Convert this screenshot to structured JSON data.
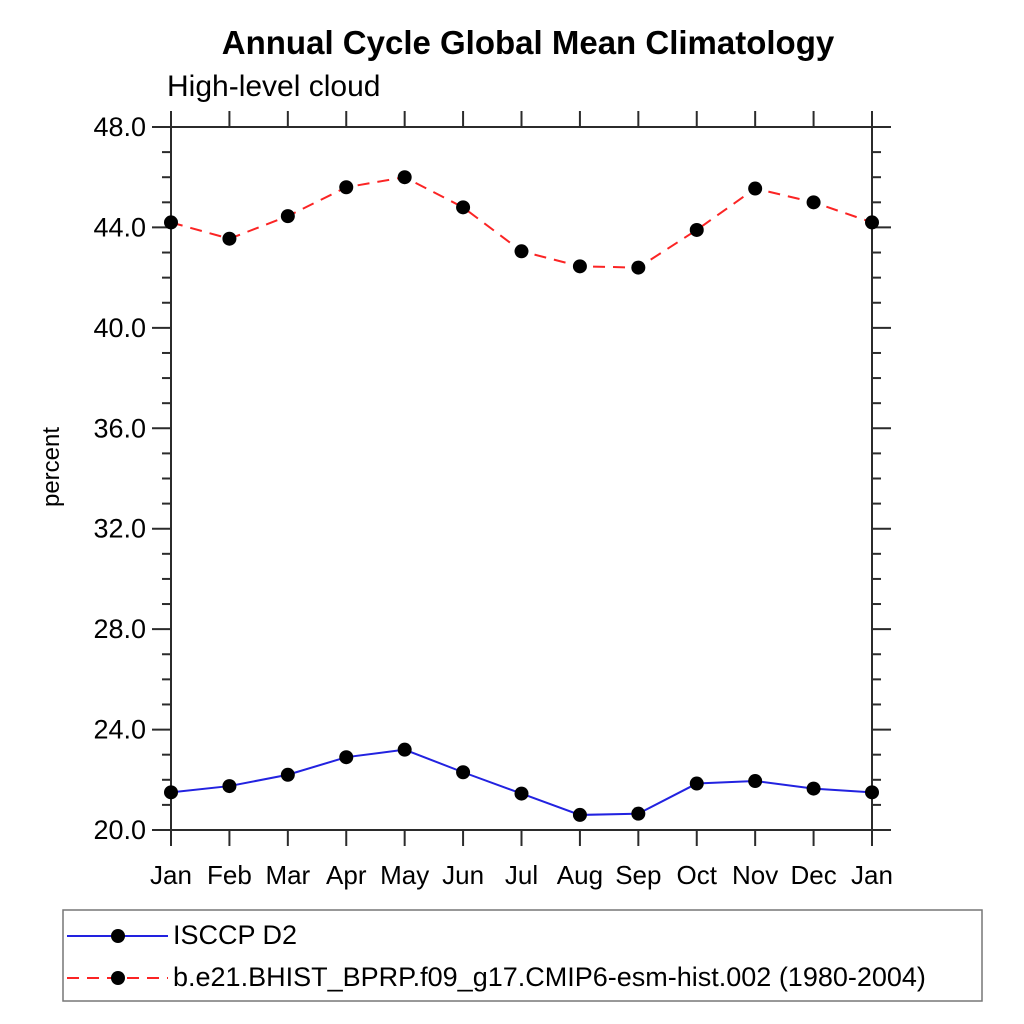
{
  "header": {
    "title": "Annual Cycle Global Mean Climatology",
    "subtitle": "High-level cloud"
  },
  "axes": {
    "ylabel": "percent",
    "y_tick_labels": [
      "20.0",
      "24.0",
      "28.0",
      "32.0",
      "36.0",
      "40.0",
      "44.0",
      "48.0"
    ],
    "x_tick_labels": [
      "Jan",
      "Feb",
      "Mar",
      "Apr",
      "May",
      "Jun",
      "Jul",
      "Aug",
      "Sep",
      "Oct",
      "Nov",
      "Dec",
      "Jan"
    ]
  },
  "legend": {
    "entries": [
      {
        "label": "ISCCP D2"
      },
      {
        "label": "b.e21.BHIST_BPRP.f09_g17.CMIP6-esm-hist.002 (1980-2004)"
      }
    ]
  },
  "chart_data": {
    "type": "line",
    "title": "Annual Cycle Global Mean Climatology",
    "subtitle": "High-level cloud",
    "ylabel": "percent",
    "xlabel": "",
    "ylim": [
      20.0,
      48.0
    ],
    "y_major_ticks": [
      20,
      24,
      28,
      32,
      36,
      40,
      44,
      48
    ],
    "y_minor_step": 1.0,
    "grid": false,
    "legend_position": "bottom-left-box",
    "categories": [
      "Jan",
      "Feb",
      "Mar",
      "Apr",
      "May",
      "Jun",
      "Jul",
      "Aug",
      "Sep",
      "Oct",
      "Nov",
      "Dec",
      "Jan"
    ],
    "series": [
      {
        "name": "ISCCP D2",
        "line_style": "solid",
        "line_color": "#2222e0",
        "marker": "circle",
        "marker_color": "#000000",
        "values": [
          21.5,
          21.75,
          22.2,
          22.9,
          23.2,
          22.3,
          21.45,
          20.6,
          20.65,
          21.85,
          21.95,
          21.65,
          21.5
        ]
      },
      {
        "name": "b.e21.BHIST_BPRP.f09_g17.CMIP6-esm-hist.002 (1980-2004)",
        "line_style": "dashed",
        "line_color": "#fb2424",
        "marker": "circle",
        "marker_color": "#000000",
        "values": [
          44.2,
          43.55,
          44.45,
          45.6,
          46.0,
          44.8,
          43.05,
          42.45,
          42.4,
          43.9,
          45.55,
          45.0,
          44.2
        ]
      }
    ]
  }
}
